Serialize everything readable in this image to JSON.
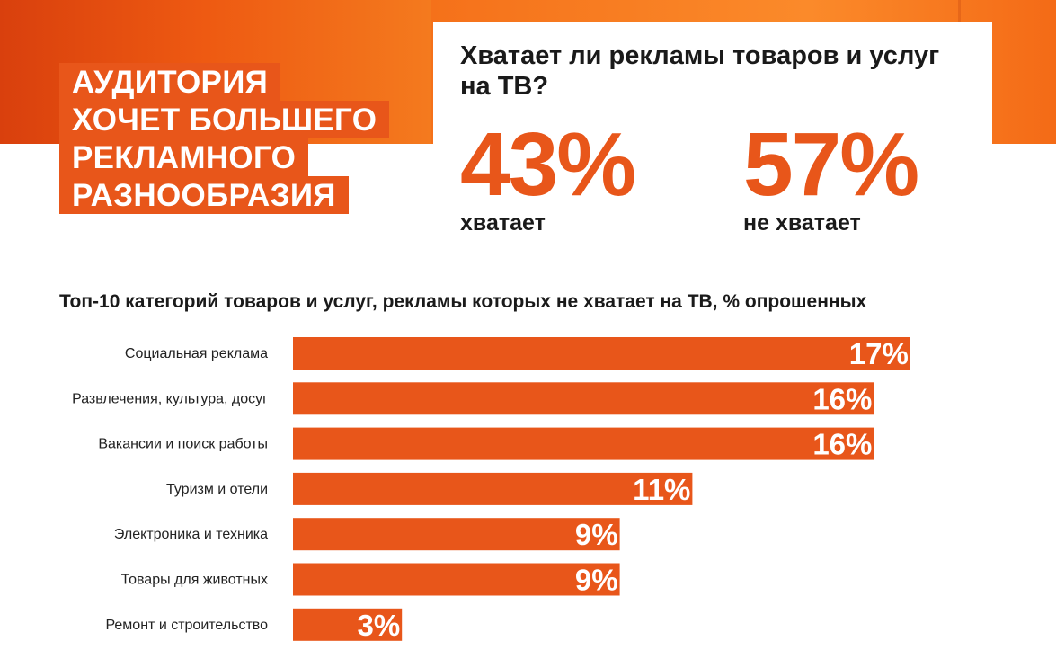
{
  "headline": {
    "lines": [
      "АУДИТОРИЯ",
      "ХОЧЕТ БОЛЬШЕГО",
      "РЕКЛАМНОГО",
      "РАЗНООБРАЗИЯ"
    ]
  },
  "survey": {
    "question": "Хватает ли рекламы товаров и услуг на ТВ?",
    "yes_value": "43%",
    "yes_label": "хватает",
    "no_value": "57%",
    "no_label": "не хватает"
  },
  "colors": {
    "accent": "#e8561a",
    "header_background": "#f06a17",
    "text": "#1a1a1a"
  },
  "chart_data": {
    "type": "bar",
    "orientation": "horizontal",
    "title": "Топ-10 категорий товаров и услуг, рекламы которых не хватает на ТВ, % опрошенных",
    "categories": [
      "Социальная реклама",
      "Развлечения, культура, досуг",
      "Вакансии и поиск работы",
      "Туризм и отели",
      "Электроника и техника",
      "Товары для животных",
      "Ремонт и строительство"
    ],
    "values": [
      17,
      16,
      16,
      11,
      9,
      9,
      3
    ],
    "value_labels": [
      "17%",
      "16%",
      "16%",
      "11%",
      "9%",
      "9%",
      "3%"
    ],
    "grid": false
  }
}
